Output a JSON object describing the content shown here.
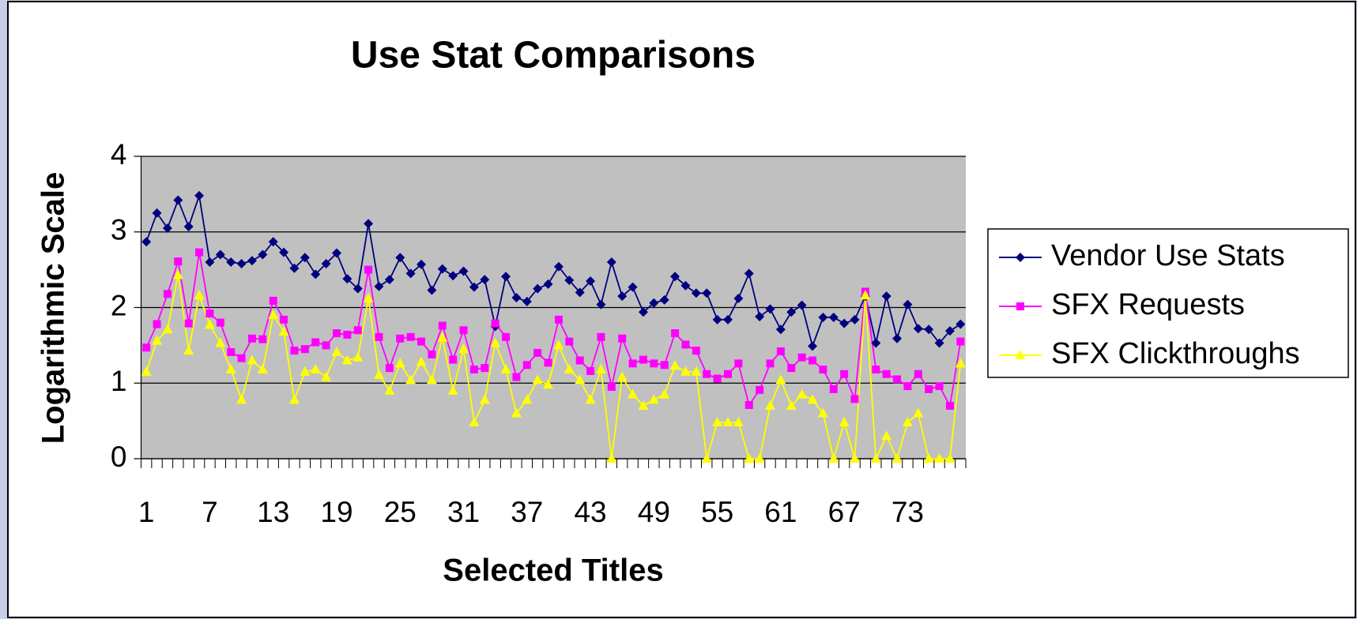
{
  "chart_data": {
    "type": "line",
    "title": "Use Stat Comparisons",
    "x_label": "Selected Titles",
    "y_label": "Logarithmic Scale",
    "categories": [
      "1",
      null,
      null,
      null,
      null,
      null,
      "7",
      null,
      null,
      null,
      null,
      null,
      "13",
      null,
      null,
      null,
      null,
      null,
      "19",
      null,
      null,
      null,
      null,
      null,
      "25",
      null,
      null,
      null,
      null,
      null,
      "31",
      null,
      null,
      null,
      null,
      null,
      "37",
      null,
      null,
      null,
      null,
      null,
      "43",
      null,
      null,
      null,
      null,
      null,
      "49",
      null,
      null,
      null,
      null,
      null,
      "55",
      null,
      null,
      null,
      null,
      null,
      "61",
      null,
      null,
      null,
      null,
      null,
      "67",
      null,
      null,
      null,
      null,
      null,
      "73",
      null,
      null,
      null,
      null,
      null
    ],
    "series": [
      {
        "name": "Vendor Use Stats",
        "color": "#000080",
        "marker": "diamond",
        "values": [
          2.87,
          3.25,
          3.05,
          3.42,
          3.07,
          3.48,
          2.6,
          2.7,
          2.6,
          2.58,
          2.62,
          2.7,
          2.87,
          2.73,
          2.52,
          2.66,
          2.44,
          2.58,
          2.72,
          2.38,
          2.25,
          3.11,
          2.28,
          2.37,
          2.66,
          2.45,
          2.57,
          2.23,
          2.51,
          2.42,
          2.48,
          2.27,
          2.37,
          1.75,
          2.41,
          2.13,
          2.08,
          2.25,
          2.31,
          2.54,
          2.36,
          2.2,
          2.35,
          2.04,
          2.6,
          2.15,
          2.27,
          1.94,
          2.06,
          2.1,
          2.41,
          2.29,
          2.19,
          2.19,
          1.84,
          1.84,
          2.12,
          2.45,
          1.88,
          1.98,
          1.71,
          1.94,
          2.03,
          1.49,
          1.87,
          1.87,
          1.79,
          1.84,
          2.15,
          1.53,
          2.15,
          1.59,
          2.04,
          1.72,
          1.71,
          1.53,
          1.69,
          1.78
        ]
      },
      {
        "name": "SFX Requests",
        "color": "#ff00ff",
        "marker": "square",
        "values": [
          1.47,
          1.78,
          2.18,
          2.61,
          1.79,
          2.73,
          1.92,
          1.8,
          1.41,
          1.33,
          1.59,
          1.58,
          2.09,
          1.84,
          1.43,
          1.45,
          1.54,
          1.5,
          1.66,
          1.64,
          1.7,
          2.5,
          1.61,
          1.2,
          1.59,
          1.61,
          1.55,
          1.38,
          1.76,
          1.31,
          1.7,
          1.18,
          1.2,
          1.79,
          1.61,
          1.08,
          1.24,
          1.4,
          1.27,
          1.84,
          1.55,
          1.3,
          1.16,
          1.61,
          0.95,
          1.59,
          1.26,
          1.31,
          1.26,
          1.24,
          1.66,
          1.51,
          1.43,
          1.12,
          1.06,
          1.12,
          1.26,
          0.71,
          0.91,
          1.26,
          1.42,
          1.2,
          1.34,
          1.3,
          1.18,
          0.92,
          1.12,
          0.79,
          2.21,
          1.18,
          1.12,
          1.05,
          0.96,
          1.12,
          0.92,
          0.96,
          0.7,
          1.55
        ]
      },
      {
        "name": "SFX Clickthroughs",
        "color": "#ffff00",
        "marker": "triangle",
        "values": [
          1.15,
          1.56,
          1.71,
          2.43,
          1.43,
          2.16,
          1.77,
          1.53,
          1.18,
          0.78,
          1.3,
          1.18,
          1.9,
          1.68,
          0.78,
          1.15,
          1.18,
          1.08,
          1.41,
          1.3,
          1.34,
          2.12,
          1.11,
          0.9,
          1.26,
          1.04,
          1.28,
          1.04,
          1.6,
          0.9,
          1.45,
          0.48,
          0.78,
          1.53,
          1.18,
          0.6,
          0.78,
          1.04,
          0.98,
          1.5,
          1.18,
          1.04,
          0.78,
          1.18,
          0,
          1.08,
          0.85,
          0.7,
          0.78,
          0.85,
          1.23,
          1.15,
          1.15,
          0,
          0.48,
          0.48,
          0.48,
          0,
          0,
          0.7,
          1.04,
          0.7,
          0.85,
          0.78,
          0.6,
          0,
          0.48,
          0,
          2.16,
          0,
          0.3,
          0,
          0.48,
          0.6,
          0,
          0,
          0,
          1.26
        ]
      }
    ],
    "ylim": [
      0,
      4
    ],
    "yticks": [
      0,
      1,
      2,
      3,
      4
    ],
    "grid": true,
    "legend": "right",
    "plot_background": "#c0c0c0"
  }
}
